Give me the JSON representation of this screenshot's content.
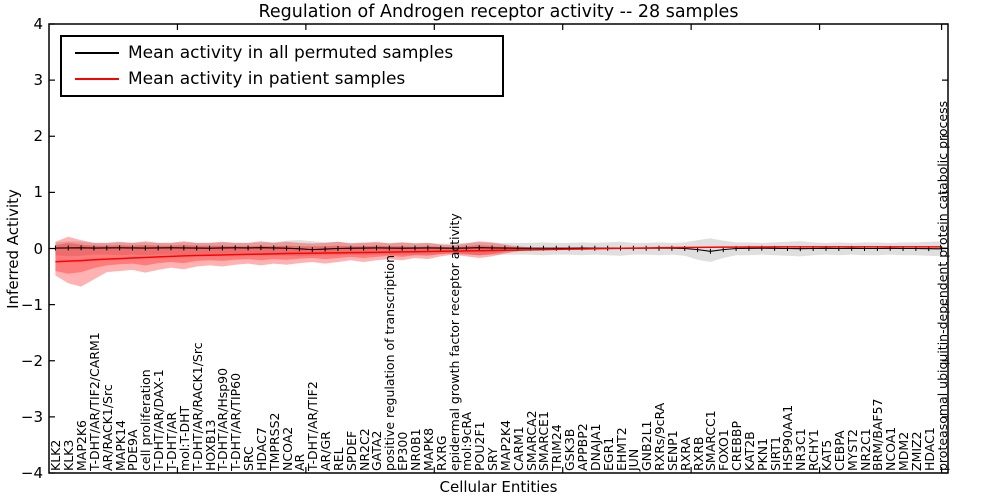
{
  "title": "Regulation of Androgen receptor activity -- 28 samples",
  "axes": {
    "ylabel": "Inferred Activity",
    "xlabel": "Cellular Entities",
    "yticks": [
      {
        "v": 4,
        "label": "4"
      },
      {
        "v": 3,
        "label": "3"
      },
      {
        "v": 2,
        "label": "2"
      },
      {
        "v": 1,
        "label": "1"
      },
      {
        "v": 0,
        "label": "0"
      },
      {
        "v": -1,
        "label": "−1"
      },
      {
        "v": -2,
        "label": "−2"
      },
      {
        "v": -3,
        "label": "−3"
      },
      {
        "v": -4,
        "label": "−4"
      }
    ]
  },
  "legend": {
    "items": [
      {
        "label": "Mean activity in all permuted samples",
        "color": "#000000"
      },
      {
        "label": "Mean activity in patient samples",
        "color": "#ff0000"
      }
    ]
  },
  "chart_data": {
    "type": "line",
    "title": "Regulation of Androgen receptor activity -- 28 samples",
    "xlabel": "Cellular Entities",
    "ylabel": "Inferred Activity",
    "ylim": [
      -4,
      4
    ],
    "grid": false,
    "legend_position": "upper left",
    "top_axis_tick_positions": [
      10,
      20,
      30,
      40,
      50,
      60,
      69.5
    ],
    "categories": [
      "KLK2",
      "KLK3",
      "MAP2K6",
      "T-DHT/AR/TIF2/CARM1",
      "AR/RACK1/Src",
      "MAPK14",
      "PDE9A",
      "cell proliferation",
      "T-DHT/AR/DAX-1",
      "T-DHT/AR",
      "mol:T-DHT",
      "T-DHT/AR/RACK1/Src",
      "HOXB13",
      "T-DHT/AR/Hsp90",
      "T-DHT/AR/TIP60",
      "SRC",
      "HDAC7",
      "TMPRSS2",
      "NCOA2",
      "AR",
      "T-DHT/AR/TIF2",
      "AR/GR",
      "REL",
      "SPDEF",
      "NR2C2",
      "GATA2",
      "positive regulation of transcription",
      "EP300",
      "NR0B1",
      "MAPK8",
      "RXRG",
      "epidermal growth factor receptor activity",
      "mol:9cRA",
      "POU2F1",
      "SRY",
      "MAP2K4",
      "CARM1",
      "SMARCA2",
      "SMARCE1",
      "TRIM24",
      "GSK3B",
      "APPBP2",
      "DNAJA1",
      "EGR1",
      "EHMT2",
      "JUN",
      "GNB2L1",
      "RXRs/9cRA",
      "SENP1",
      "RXRA",
      "RXRB",
      "SMARCC1",
      "FOXO1",
      "CREBBP",
      "KAT2B",
      "PKN1",
      "SIRT1",
      "HSP90AA1",
      "NR3C1",
      "RCHY1",
      "KAT5",
      "CEBPA",
      "MYST2",
      "NR2C1",
      "BRM/BAF57",
      "NCOA1",
      "MDM2",
      "ZMIZ2",
      "HDAC1",
      "proteasomal ubiquitin-dependent protein catabolic process"
    ],
    "series": [
      {
        "name": "Mean activity in all permuted samples",
        "color": "#000000",
        "marker": "|",
        "values": [
          0.008,
          0.01,
          0.012,
          0.008,
          0.01,
          0.012,
          0.01,
          0.008,
          0.01,
          0.012,
          0.01,
          0.008,
          0.006,
          0.01,
          0.012,
          0.01,
          0.015,
          0.01,
          0.005,
          -0.005,
          -0.02,
          -0.01,
          0.0,
          0.005,
          0.008,
          0.01,
          0.008,
          0.005,
          0.008,
          0.01,
          0.008,
          0.005,
          0.008,
          0.015,
          0.01,
          0.008,
          0.005,
          0.005,
          0.005,
          0.005,
          0.005,
          0.008,
          0.005,
          0.005,
          0.008,
          0.005,
          0.005,
          0.005,
          0.005,
          0.0,
          -0.02,
          -0.05,
          -0.02,
          0.0,
          0.003,
          0.005,
          0.003,
          0.0,
          -0.003,
          0.0,
          0.003,
          0.0,
          0.003,
          0.0,
          0.0,
          0.003,
          0.0,
          0.0,
          -0.003,
          -0.005
        ]
      },
      {
        "name": "Mean activity in patient samples",
        "color": "#ff0000",
        "marker": "none",
        "values": [
          -0.235,
          -0.225,
          -0.215,
          -0.2,
          -0.19,
          -0.18,
          -0.17,
          -0.16,
          -0.15,
          -0.14,
          -0.132,
          -0.125,
          -0.12,
          -0.115,
          -0.11,
          -0.105,
          -0.1,
          -0.095,
          -0.09,
          -0.087,
          -0.084,
          -0.08,
          -0.077,
          -0.074,
          -0.071,
          -0.068,
          -0.064,
          -0.06,
          -0.057,
          -0.054,
          -0.05,
          -0.046,
          -0.042,
          -0.039,
          -0.036,
          -0.032,
          -0.028,
          -0.024,
          -0.02,
          -0.016,
          -0.012,
          -0.008,
          -0.004,
          0.0,
          0.004,
          0.007,
          0.01,
          0.013,
          0.016,
          0.018,
          0.02,
          0.022,
          0.024,
          0.025,
          0.026,
          0.027,
          0.028,
          0.028,
          0.029,
          0.03,
          0.03,
          0.03,
          0.03,
          0.03,
          0.03,
          0.03,
          0.03,
          0.03,
          0.03,
          0.03
        ]
      }
    ],
    "bands": [
      {
        "name": "permuted-samples-range",
        "color": "rgba(128,128,128,0.25)",
        "start_index": 0,
        "upper": [
          0.11,
          0.13,
          0.12,
          0.1,
          0.1,
          0.11,
          0.1,
          0.11,
          0.1,
          0.1,
          0.11,
          0.1,
          0.1,
          0.11,
          0.1,
          0.1,
          0.11,
          0.11,
          0.14,
          0.15,
          0.13,
          0.11,
          0.12,
          0.1,
          0.11,
          0.1,
          0.1,
          0.11,
          0.1,
          0.1,
          0.09,
          0.09,
          0.1,
          0.11,
          0.1,
          0.1,
          0.1,
          0.1,
          0.11,
          0.1,
          0.1,
          0.11,
          0.1,
          0.11,
          0.12,
          0.1,
          0.1,
          0.11,
          0.1,
          0.11,
          0.15,
          0.18,
          0.14,
          0.11,
          0.11,
          0.1,
          0.11,
          0.12,
          0.13,
          0.11,
          0.1,
          0.11,
          0.1,
          0.11,
          0.11,
          0.1,
          0.11,
          0.11,
          0.12,
          0.13
        ],
        "lower": [
          -0.12,
          -0.14,
          -0.13,
          -0.11,
          -0.11,
          -0.12,
          -0.11,
          -0.12,
          -0.11,
          -0.11,
          -0.12,
          -0.11,
          -0.11,
          -0.12,
          -0.11,
          -0.11,
          -0.12,
          -0.12,
          -0.13,
          -0.14,
          -0.13,
          -0.12,
          -0.12,
          -0.11,
          -0.12,
          -0.11,
          -0.11,
          -0.12,
          -0.11,
          -0.11,
          -0.1,
          -0.1,
          -0.11,
          -0.12,
          -0.11,
          -0.11,
          -0.11,
          -0.11,
          -0.12,
          -0.11,
          -0.11,
          -0.12,
          -0.11,
          -0.12,
          -0.13,
          -0.11,
          -0.11,
          -0.12,
          -0.11,
          -0.13,
          -0.2,
          -0.24,
          -0.17,
          -0.12,
          -0.12,
          -0.11,
          -0.12,
          -0.13,
          -0.14,
          -0.12,
          -0.11,
          -0.12,
          -0.11,
          -0.12,
          -0.12,
          -0.11,
          -0.12,
          -0.12,
          -0.13,
          -0.14
        ]
      },
      {
        "name": "patient-samples-range-outer",
        "color": "rgba(255,0,0,0.30)",
        "start_index": 0,
        "upper": [
          0.12,
          0.21,
          0.15,
          0.1,
          0.1,
          0.12,
          0.1,
          0.13,
          0.1,
          0.1,
          0.13,
          0.1,
          0.1,
          0.12,
          0.1,
          0.1,
          0.13,
          0.1,
          0.12,
          0.1,
          0.09,
          0.1,
          0.12,
          0.09,
          0.1,
          0.12,
          0.09,
          0.11,
          0.09,
          0.1,
          0.07,
          0.06,
          0.09,
          0.13,
          0.11,
          0.07,
          0.04,
          0.02
        ],
        "lower": [
          -0.48,
          -0.62,
          -0.68,
          -0.55,
          -0.42,
          -0.4,
          -0.38,
          -0.43,
          -0.38,
          -0.34,
          -0.37,
          -0.32,
          -0.3,
          -0.32,
          -0.29,
          -0.27,
          -0.3,
          -0.27,
          -0.29,
          -0.26,
          -0.24,
          -0.27,
          -0.24,
          -0.21,
          -0.24,
          -0.21,
          -0.19,
          -0.21,
          -0.17,
          -0.19,
          -0.14,
          -0.11,
          -0.14,
          -0.17,
          -0.14,
          -0.09,
          -0.05,
          -0.02
        ]
      },
      {
        "name": "patient-samples-range-inner",
        "color": "rgba(255,0,0,0.30)",
        "start_index": 0,
        "upper": [
          0.06,
          0.1,
          0.07,
          0.05,
          0.05,
          0.06,
          0.05,
          0.06,
          0.05,
          0.05,
          0.06,
          0.05,
          0.05,
          0.05,
          0.04,
          0.04,
          0.05,
          0.04,
          0.05,
          0.04,
          0.04,
          0.04,
          0.05,
          0.04,
          0.04,
          0.05,
          0.04,
          0.04,
          0.03,
          0.04,
          0.03,
          0.02,
          0.04,
          0.06,
          0.04,
          0.03,
          0.02,
          0.01
        ],
        "lower": [
          -0.4,
          -0.45,
          -0.42,
          -0.35,
          -0.3,
          -0.28,
          -0.27,
          -0.3,
          -0.26,
          -0.24,
          -0.26,
          -0.22,
          -0.21,
          -0.22,
          -0.2,
          -0.19,
          -0.21,
          -0.19,
          -0.2,
          -0.18,
          -0.17,
          -0.19,
          -0.17,
          -0.15,
          -0.17,
          -0.15,
          -0.13,
          -0.15,
          -0.12,
          -0.13,
          -0.1,
          -0.08,
          -0.1,
          -0.12,
          -0.1,
          -0.06,
          -0.035,
          -0.015
        ]
      }
    ]
  }
}
